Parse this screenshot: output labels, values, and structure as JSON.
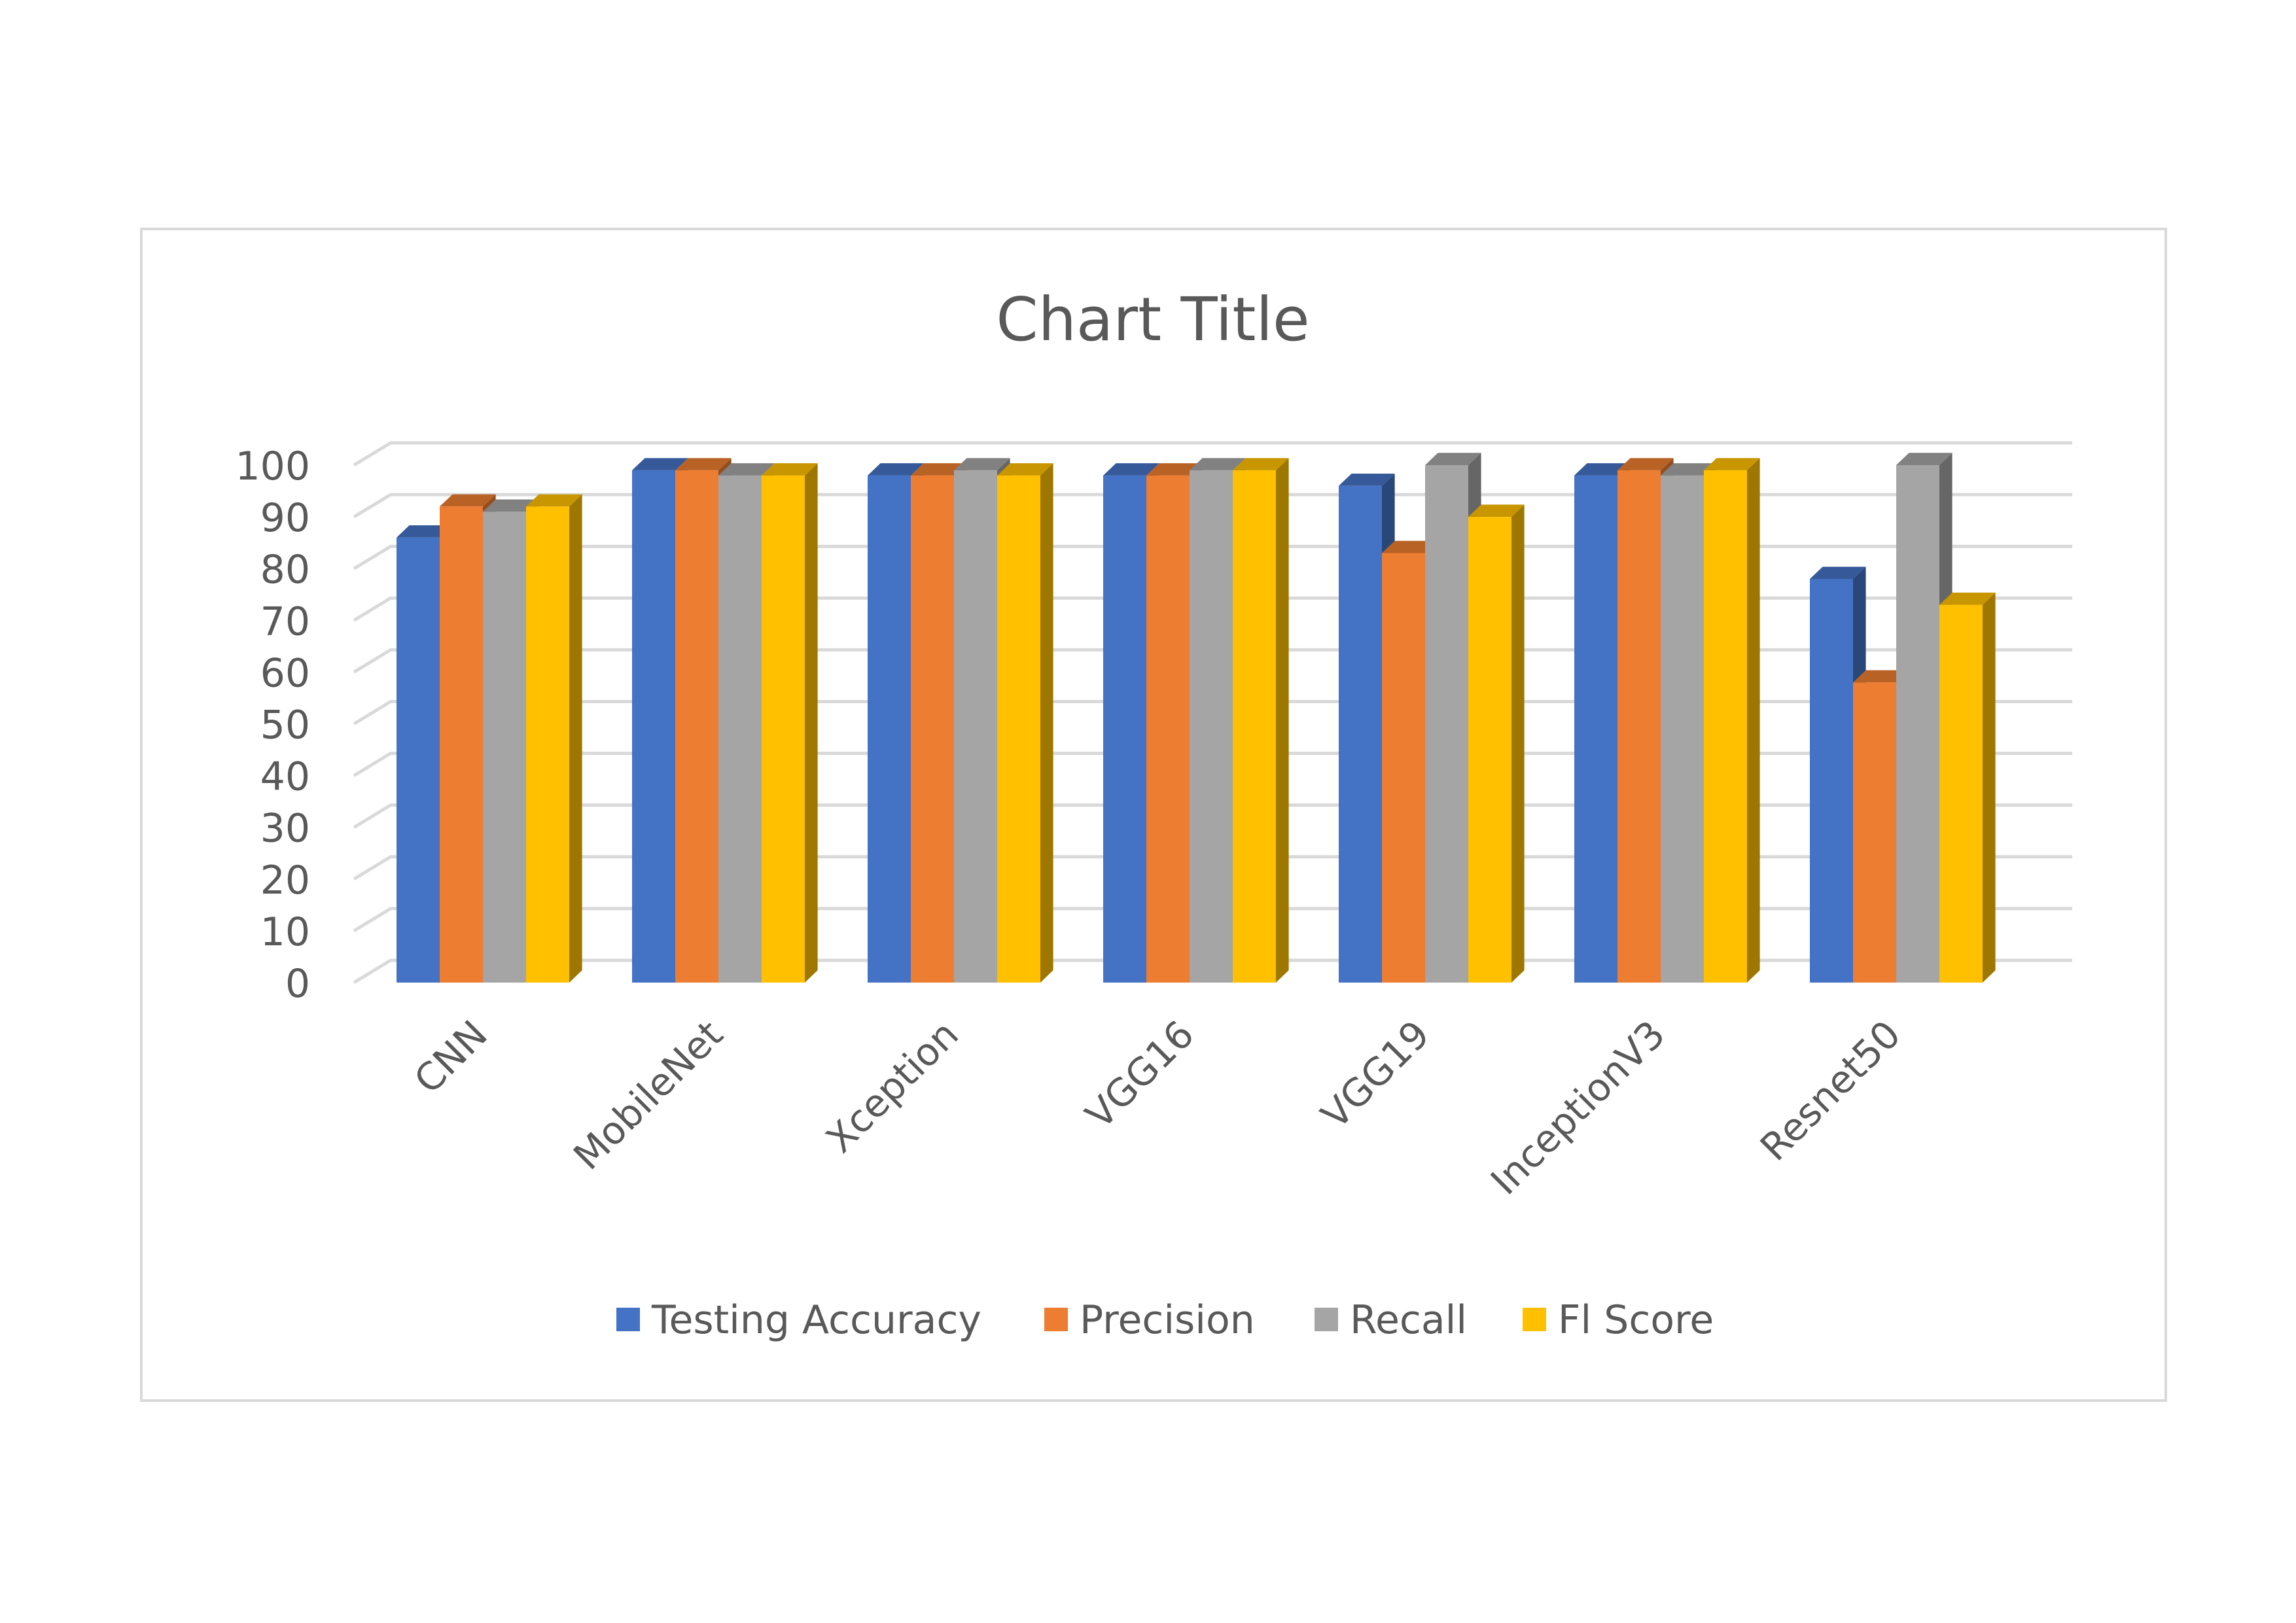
{
  "chart_data": {
    "type": "bar",
    "title": "Chart Title",
    "categories": [
      "CNN",
      "MobileNet",
      "Xception",
      "VGG16",
      "VGG19",
      "InceptionV3",
      "Resnet50"
    ],
    "series": [
      {
        "name": "Testing Accuracy",
        "color": "#4472C4",
        "values": [
          86,
          99,
          98,
          98,
          96,
          98,
          78
        ]
      },
      {
        "name": "Precision",
        "color": "#ED7D31",
        "values": [
          92,
          99,
          98,
          98,
          83,
          99,
          58
        ]
      },
      {
        "name": "Recall",
        "color": "#A5A5A5",
        "values": [
          91,
          98,
          99,
          99,
          100,
          98,
          100
        ]
      },
      {
        "name": "Fl Score",
        "color": "#FFC000",
        "values": [
          92,
          98,
          98,
          99,
          90,
          99,
          73
        ]
      }
    ],
    "yticks": [
      "0",
      "10",
      "20",
      "30",
      "40",
      "50",
      "60",
      "70",
      "80",
      "90",
      "100"
    ],
    "ylim": [
      0,
      100
    ],
    "grid": true,
    "style_3d": true,
    "legend_position": "bottom"
  }
}
